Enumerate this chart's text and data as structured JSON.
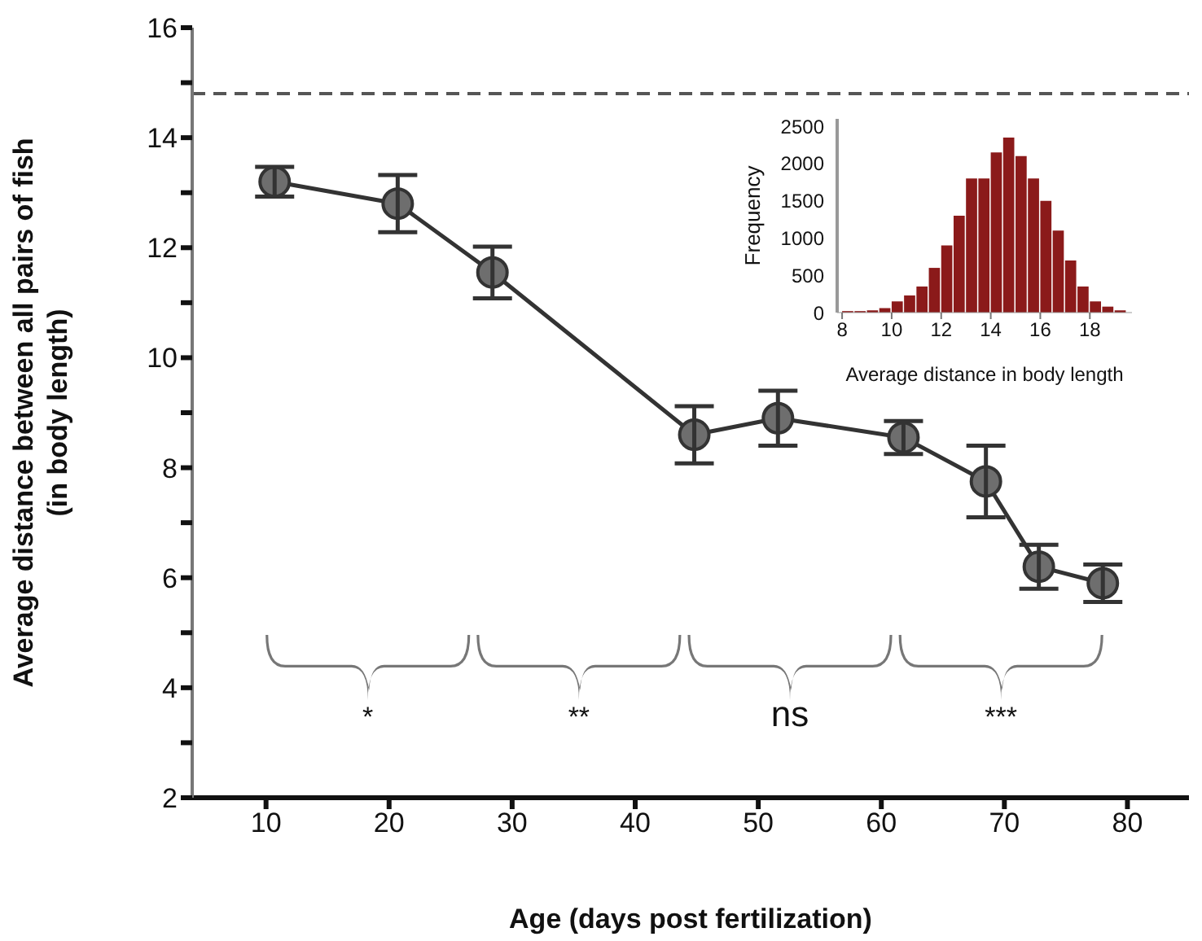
{
  "chart_data": [
    {
      "type": "line",
      "xlabel": "Age (days post fertilization)",
      "ylabel": "Average distance between all pairs of fish\n(in body length)",
      "x": [
        10.7,
        20.7,
        28.4,
        44.8,
        51.6,
        61.8,
        68.5,
        72.8,
        78.0
      ],
      "series": [
        {
          "color": "#333333",
          "values": [
            13.2,
            12.8,
            11.55,
            8.6,
            8.9,
            8.55,
            7.75,
            6.2,
            5.9
          ],
          "errors": [
            0.27,
            0.52,
            0.47,
            0.52,
            0.5,
            0.3,
            0.65,
            0.4,
            0.34
          ]
        }
      ],
      "marker": "circle",
      "grid": false,
      "legend": false,
      "xlim": [
        4,
        85
      ],
      "xticks": [
        10,
        20,
        30,
        40,
        50,
        60,
        70,
        80
      ],
      "ylim": [
        2,
        16
      ],
      "yticks": [
        2,
        {
          "value": 3,
          "label": null
        },
        4,
        {
          "value": 5,
          "label": null
        },
        6,
        {
          "value": 7,
          "label": null
        },
        8,
        {
          "value": 9,
          "label": null
        },
        10,
        {
          "value": 11,
          "label": null
        },
        12,
        {
          "value": 13,
          "label": null
        },
        14,
        {
          "value": 15,
          "label": null
        },
        16
      ],
      "ref_lines": [
        {
          "axis": "y",
          "value": 14.8,
          "color": "#555555",
          "line_style": "dashed"
        }
      ],
      "annotations": [
        "*",
        "**",
        "ns",
        "***"
      ]
    },
    {
      "type": "histogram",
      "xlabel": "Average distance in body length",
      "ylabel": "Frequency",
      "color": "#8b1a1a",
      "bins": [
        8,
        8.5,
        9,
        9.5,
        10,
        10.5,
        11,
        11.5,
        12,
        12.5,
        13,
        13.5,
        14,
        14.5,
        15,
        15.5,
        16,
        16.5,
        17,
        17.5,
        18,
        18.5,
        19,
        19.5
      ],
      "values": [
        20,
        20,
        30,
        60,
        150,
        230,
        350,
        600,
        900,
        1300,
        1800,
        1800,
        2150,
        2350,
        2100,
        1800,
        1500,
        1100,
        700,
        350,
        150,
        80,
        30
      ],
      "xlim": [
        7.8,
        19.7
      ],
      "xticks": [
        8,
        10,
        12,
        14,
        16,
        18
      ],
      "ylim": [
        0,
        2600
      ],
      "yticks": [
        0,
        500,
        1000,
        1500,
        2000,
        2500
      ]
    }
  ]
}
